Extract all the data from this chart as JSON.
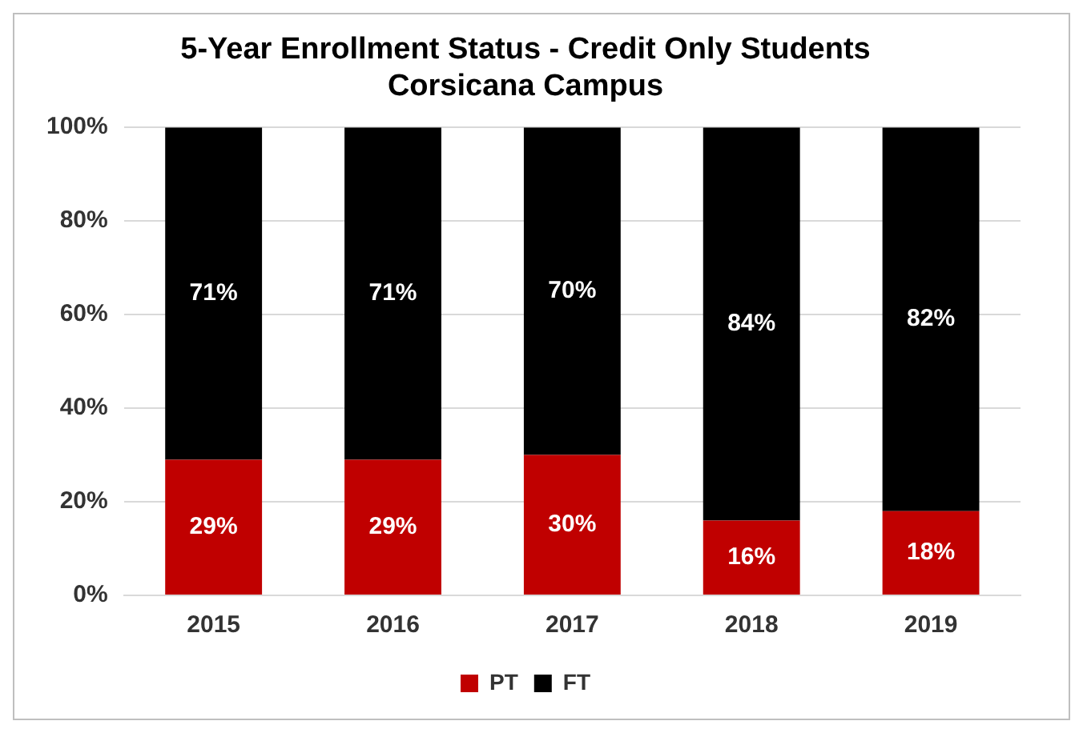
{
  "chart_data": {
    "type": "bar",
    "title": "5-Year Enrollment Status - Credit Only Students\nCorsicana Campus",
    "categories": [
      "2015",
      "2016",
      "2017",
      "2018",
      "2019"
    ],
    "stacked": true,
    "series": [
      {
        "name": "PT",
        "color": "#c00000",
        "values": [
          29,
          29,
          30,
          16,
          18
        ],
        "value_labels": [
          "29%",
          "29%",
          "30%",
          "16%",
          "18%"
        ]
      },
      {
        "name": "FT",
        "color": "#000000",
        "values": [
          71,
          71,
          70,
          84,
          82
        ],
        "value_labels": [
          "71%",
          "71%",
          "70%",
          "84%",
          "82%"
        ]
      }
    ],
    "ylim": [
      0,
      100
    ],
    "yticks": [
      {
        "value": 0,
        "label": "0%"
      },
      {
        "value": 20,
        "label": "20%"
      },
      {
        "value": 40,
        "label": "40%"
      },
      {
        "value": 60,
        "label": "60%"
      },
      {
        "value": 80,
        "label": "80%"
      },
      {
        "value": 100,
        "label": "100%"
      }
    ],
    "grid": "y",
    "legend": "bottom"
  }
}
